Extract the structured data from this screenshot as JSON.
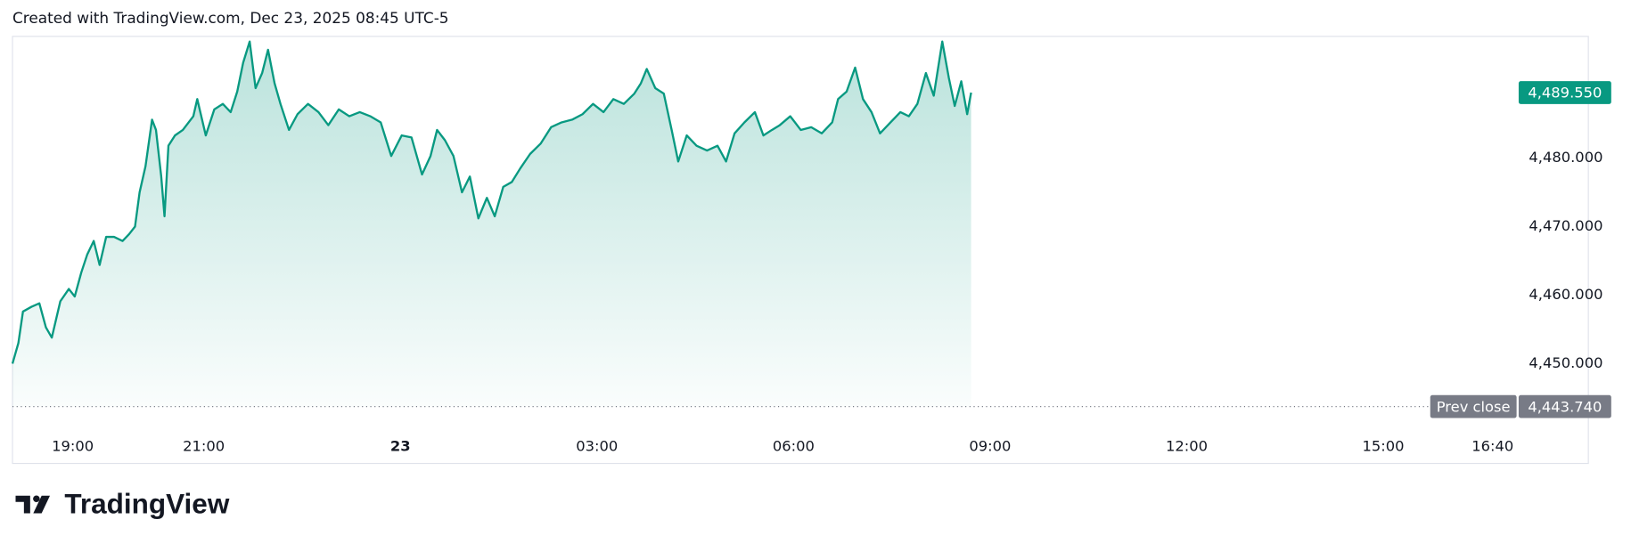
{
  "header": "Created with TradingView.com, Dec 23, 2025 08:45 UTC-5",
  "logo": "TradingView",
  "chart_data": {
    "type": "area",
    "xlim": [
      18.08,
      42.13
    ],
    "ylim": [
      4441.2,
      4497.6
    ],
    "xticks": [
      {
        "value": 19,
        "label": "19:00"
      },
      {
        "value": 21,
        "label": "21:00"
      },
      {
        "value": 24,
        "label": "23"
      },
      {
        "value": 27,
        "label": "03:00"
      },
      {
        "value": 30,
        "label": "06:00"
      },
      {
        "value": 33,
        "label": "09:00"
      },
      {
        "value": 36,
        "label": "12:00"
      },
      {
        "value": 39,
        "label": "15:00"
      },
      {
        "value": 40.67,
        "label": "16:40"
      }
    ],
    "yticks": [
      {
        "value": 4450,
        "label": "4,450.000"
      },
      {
        "value": 4460,
        "label": "4,460.000"
      },
      {
        "value": 4470,
        "label": "4,470.000"
      },
      {
        "value": 4480,
        "label": "4,480.000"
      }
    ],
    "price_line": {
      "value": 4489.55,
      "label": "4,489.550",
      "color": "#089981"
    },
    "prev_close": {
      "name": "Prev close",
      "value": 4443.74,
      "label": "4,443.740",
      "color": "#787b86"
    },
    "series": [
      {
        "color": "#089981",
        "x": [
          18.08,
          18.17,
          18.24,
          18.37,
          18.49,
          18.59,
          18.68,
          18.81,
          18.94,
          19.03,
          19.13,
          19.22,
          19.32,
          19.41,
          19.51,
          19.63,
          19.76,
          19.86,
          19.95,
          20.02,
          20.11,
          20.21,
          20.27,
          20.35,
          20.4,
          20.46,
          20.56,
          20.68,
          20.84,
          20.9,
          21.03,
          21.16,
          21.29,
          21.41,
          21.51,
          21.6,
          21.7,
          21.79,
          21.89,
          21.98,
          22.08,
          22.17,
          22.3,
          22.43,
          22.59,
          22.75,
          22.9,
          23.06,
          23.22,
          23.38,
          23.54,
          23.7,
          23.86,
          24.02,
          24.17,
          24.33,
          24.46,
          24.56,
          24.68,
          24.81,
          24.94,
          25.06,
          25.19,
          25.32,
          25.44,
          25.57,
          25.7,
          25.83,
          25.98,
          26.14,
          26.3,
          26.46,
          26.62,
          26.78,
          26.94,
          27.1,
          27.25,
          27.41,
          27.57,
          27.67,
          27.76,
          27.89,
          28.02,
          28.14,
          28.24,
          28.37,
          28.52,
          28.68,
          28.84,
          28.97,
          29.1,
          29.25,
          29.41,
          29.54,
          29.67,
          29.79,
          29.95,
          30.11,
          30.27,
          30.43,
          30.59,
          30.68,
          30.81,
          30.94,
          31.06,
          31.19,
          31.32,
          31.48,
          31.63,
          31.76,
          31.89,
          32.02,
          32.14,
          32.27,
          32.37,
          32.46,
          32.56,
          32.65,
          32.71
        ],
        "values": [
          4450.0,
          4453.0,
          4457.6,
          4458.3,
          4458.8,
          4455.3,
          4453.8,
          4459.1,
          4460.9,
          4459.8,
          4463.3,
          4465.9,
          4467.9,
          4464.4,
          4468.5,
          4468.5,
          4467.9,
          4468.9,
          4470.0,
          4475.0,
          4478.8,
          4485.6,
          4484.1,
          4477.3,
          4471.5,
          4481.8,
          4483.3,
          4484.1,
          4486.1,
          4488.6,
          4483.3,
          4487.1,
          4487.9,
          4486.7,
          4489.7,
          4493.9,
          4497.0,
          4490.2,
          4492.4,
          4495.8,
          4490.9,
          4487.9,
          4484.1,
          4486.4,
          4487.9,
          4486.7,
          4484.8,
          4487.1,
          4486.1,
          4486.7,
          4486.1,
          4485.2,
          4480.3,
          4483.3,
          4483.0,
          4477.6,
          4480.3,
          4484.1,
          4482.6,
          4480.3,
          4475.0,
          4477.3,
          4471.2,
          4474.2,
          4471.5,
          4475.8,
          4476.5,
          4478.5,
          4480.6,
          4482.1,
          4484.5,
          4485.2,
          4485.6,
          4486.4,
          4487.9,
          4486.7,
          4488.6,
          4487.9,
          4489.4,
          4490.9,
          4493.0,
          4490.2,
          4489.4,
          4484.1,
          4479.5,
          4483.3,
          4481.8,
          4481.1,
          4481.8,
          4479.5,
          4483.6,
          4485.2,
          4486.7,
          4483.3,
          4484.1,
          4484.8,
          4486.1,
          4484.1,
          4484.5,
          4483.6,
          4485.2,
          4488.6,
          4489.7,
          4493.2,
          4488.6,
          4486.7,
          4483.6,
          4485.2,
          4486.7,
          4486.1,
          4487.9,
          4492.4,
          4489.1,
          4497.0,
          4491.7,
          4487.6,
          4491.2,
          4486.4,
          4489.55
        ]
      }
    ]
  }
}
